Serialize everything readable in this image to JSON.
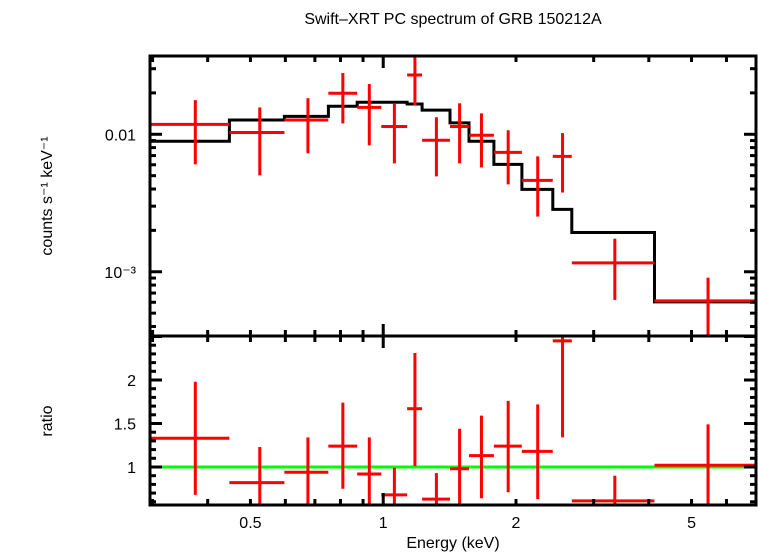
{
  "chart_data": [
    {
      "panel": "spectrum",
      "type": "scatter",
      "title": "Swift–XRT PC spectrum of GRB 150212A",
      "ylabel": "counts s⁻¹ keV⁻¹",
      "xlabel": "",
      "xscale": "log",
      "yscale": "log",
      "xlim": [
        0.296,
        7.0
      ],
      "ylim": [
        0.000341,
        0.0371
      ],
      "yticks": [
        {
          "value": 0.01,
          "label": "0.01"
        },
        {
          "value": 0.001,
          "label": "10⁻³"
        }
      ],
      "series": [
        {
          "name": "data",
          "color": "#ff0000",
          "points": [
            {
              "xlo": 0.296,
              "xhi": 0.448,
              "x": 0.375,
              "y": 0.0118,
              "ylo": 0.00604,
              "yhi": 0.0177
            },
            {
              "xlo": 0.448,
              "xhi": 0.597,
              "x": 0.525,
              "y": 0.0103,
              "ylo": 0.00502,
              "yhi": 0.0157
            },
            {
              "xlo": 0.597,
              "xhi": 0.751,
              "x": 0.675,
              "y": 0.0127,
              "ylo": 0.00727,
              "yhi": 0.0183
            },
            {
              "xlo": 0.751,
              "xhi": 0.873,
              "x": 0.81,
              "y": 0.0199,
              "ylo": 0.012,
              "yhi": 0.0279
            },
            {
              "xlo": 0.873,
              "xhi": 0.99,
              "x": 0.93,
              "y": 0.0157,
              "ylo": 0.00831,
              "yhi": 0.0232
            },
            {
              "xlo": 0.99,
              "xhi": 1.133,
              "x": 1.06,
              "y": 0.0114,
              "ylo": 0.00614,
              "yhi": 0.0168
            },
            {
              "xlo": 1.133,
              "xhi": 1.225,
              "x": 1.18,
              "y": 0.027,
              "ylo": 0.0163,
              "yhi": 0.0371
            },
            {
              "xlo": 1.225,
              "xhi": 1.417,
              "x": 1.32,
              "y": 0.00904,
              "ylo": 0.00494,
              "yhi": 0.0133
            },
            {
              "xlo": 1.417,
              "xhi": 1.565,
              "x": 1.49,
              "y": 0.0114,
              "ylo": 0.00614,
              "yhi": 0.0168
            },
            {
              "xlo": 1.565,
              "xhi": 1.782,
              "x": 1.67,
              "y": 0.00983,
              "ylo": 0.00574,
              "yhi": 0.0142
            },
            {
              "xlo": 1.782,
              "xhi": 2.062,
              "x": 1.92,
              "y": 0.00739,
              "ylo": 0.00432,
              "yhi": 0.0107
            },
            {
              "xlo": 2.062,
              "xhi": 2.423,
              "x": 2.24,
              "y": 0.00462,
              "ylo": 0.00252,
              "yhi": 0.00691
            },
            {
              "xlo": 2.423,
              "xhi": 2.676,
              "x": 2.55,
              "y": 0.00691,
              "ylo": 0.00377,
              "yhi": 0.0102
            },
            {
              "xlo": 2.676,
              "xhi": 4.12,
              "x": 3.35,
              "y": 0.00116,
              "ylo": 0.000624,
              "yhi": 0.00174
            },
            {
              "xlo": 4.12,
              "xhi": 7.0,
              "x": 5.45,
              "y": 0.000614,
              "ylo": 0.000341,
              "yhi": 0.000906
            }
          ]
        },
        {
          "name": "model",
          "type": "step",
          "color": "#000000",
          "steps": [
            {
              "xlo": 0.296,
              "xhi": 0.448,
              "y": 0.00889
            },
            {
              "xlo": 0.448,
              "xhi": 0.597,
              "y": 0.0127
            },
            {
              "xlo": 0.597,
              "xhi": 0.751,
              "y": 0.0135
            },
            {
              "xlo": 0.751,
              "xhi": 0.873,
              "y": 0.016
            },
            {
              "xlo": 0.873,
              "xhi": 1.133,
              "y": 0.0171
            },
            {
              "xlo": 1.133,
              "xhi": 1.225,
              "y": 0.0166
            },
            {
              "xlo": 1.225,
              "xhi": 1.417,
              "y": 0.015
            },
            {
              "xlo": 1.417,
              "xhi": 1.565,
              "y": 0.0121
            },
            {
              "xlo": 1.565,
              "xhi": 1.782,
              "y": 0.00889
            },
            {
              "xlo": 1.782,
              "xhi": 2.062,
              "y": 0.00604
            },
            {
              "xlo": 2.062,
              "xhi": 2.423,
              "y": 0.00397
            },
            {
              "xlo": 2.423,
              "xhi": 2.676,
              "y": 0.00284
            },
            {
              "xlo": 2.676,
              "xhi": 4.12,
              "y": 0.00193
            },
            {
              "xlo": 4.12,
              "xhi": 7.0,
              "y": 0.000604
            }
          ]
        }
      ]
    },
    {
      "panel": "ratio",
      "type": "scatter",
      "ylabel": "ratio",
      "xlabel": "Energy (keV)",
      "xscale": "log",
      "yscale": "linear",
      "xlim": [
        0.296,
        7.0
      ],
      "ylim": [
        0.563,
        2.506
      ],
      "xticks": [
        {
          "value": 0.5,
          "label": "0.5"
        },
        {
          "value": 1,
          "label": "1"
        },
        {
          "value": 2,
          "label": "2"
        },
        {
          "value": 5,
          "label": "5"
        }
      ],
      "yticks": [
        {
          "value": 1,
          "label": "1"
        },
        {
          "value": 1.5,
          "label": "1.5"
        },
        {
          "value": 2,
          "label": "2"
        }
      ],
      "reference_line": {
        "y": 1,
        "color": "#00ff00"
      },
      "series": [
        {
          "name": "ratio",
          "color": "#ff0000",
          "points": [
            {
              "xlo": 0.296,
              "xhi": 0.448,
              "x": 0.375,
              "y": 1.33,
              "ylo": 0.68,
              "yhi": 1.98
            },
            {
              "xlo": 0.448,
              "xhi": 0.597,
              "x": 0.525,
              "y": 0.82,
              "ylo": 0.41,
              "yhi": 1.23
            },
            {
              "xlo": 0.597,
              "xhi": 0.751,
              "x": 0.675,
              "y": 0.94,
              "ylo": 0.54,
              "yhi": 1.34
            },
            {
              "xlo": 0.751,
              "xhi": 0.873,
              "x": 0.81,
              "y": 1.24,
              "ylo": 0.75,
              "yhi": 1.74
            },
            {
              "xlo": 0.873,
              "xhi": 0.99,
              "x": 0.93,
              "y": 0.92,
              "ylo": 0.5,
              "yhi": 1.34
            },
            {
              "xlo": 0.99,
              "xhi": 1.133,
              "x": 1.06,
              "y": 0.68,
              "ylo": 0.37,
              "yhi": 0.99
            },
            {
              "xlo": 1.133,
              "xhi": 1.225,
              "x": 1.18,
              "y": 1.67,
              "ylo": 1.01,
              "yhi": 2.31
            },
            {
              "xlo": 1.225,
              "xhi": 1.417,
              "x": 1.32,
              "y": 0.63,
              "ylo": 0.33,
              "yhi": 0.93
            },
            {
              "xlo": 1.417,
              "xhi": 1.565,
              "x": 1.49,
              "y": 0.98,
              "ylo": 0.52,
              "yhi": 1.44
            },
            {
              "xlo": 1.565,
              "xhi": 1.782,
              "x": 1.67,
              "y": 1.13,
              "ylo": 0.64,
              "yhi": 1.59
            },
            {
              "xlo": 1.782,
              "xhi": 2.062,
              "x": 1.92,
              "y": 1.24,
              "ylo": 0.71,
              "yhi": 1.76
            },
            {
              "xlo": 2.062,
              "xhi": 2.423,
              "x": 2.24,
              "y": 1.18,
              "ylo": 0.63,
              "yhi": 1.72
            },
            {
              "xlo": 2.423,
              "xhi": 2.676,
              "x": 2.55,
              "y": 2.45,
              "ylo": 1.34,
              "yhi": 3.5
            },
            {
              "xlo": 2.676,
              "xhi": 4.12,
              "x": 3.35,
              "y": 0.61,
              "ylo": 0.33,
              "yhi": 0.9
            },
            {
              "xlo": 4.12,
              "xhi": 7.0,
              "x": 5.45,
              "y": 1.02,
              "ylo": 0.55,
              "yhi": 1.49
            }
          ]
        }
      ]
    }
  ]
}
